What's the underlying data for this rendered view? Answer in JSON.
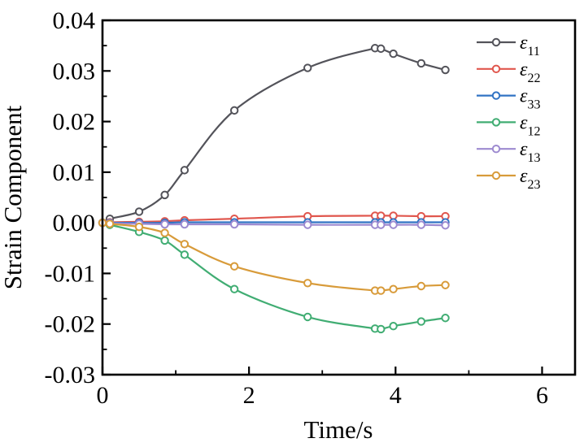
{
  "figure": {
    "background": "#ffffff",
    "axis_color": "#000000",
    "border_width": 2.6
  },
  "chart_data": {
    "type": "line",
    "title": "",
    "xlabel": "Time/s",
    "ylabel": "Strain Component",
    "xlim": [
      0,
      6.45
    ],
    "ylim": [
      -0.03,
      0.04
    ],
    "grid": false,
    "legend_position": "top-right-inside",
    "marker": "open-circle",
    "x_major_ticks": [
      0,
      2,
      4,
      6
    ],
    "x_tick_labels": [
      "0",
      "2",
      "4",
      "6"
    ],
    "x_minor_ticks": [
      1,
      3,
      5
    ],
    "y_major_ticks": [
      0.04,
      0.03,
      0.02,
      0.01,
      0.0,
      -0.01,
      -0.02,
      -0.03
    ],
    "y_tick_labels": [
      "0.04",
      "0.03",
      "0.02",
      "0.01",
      "0.00",
      "-0.01",
      "-0.02",
      "-0.03"
    ],
    "y_minor_ticks": [
      0.035,
      0.025,
      0.015,
      0.005,
      -0.005,
      -0.015,
      -0.025
    ],
    "x": [
      0,
      0.1,
      0.5,
      0.85,
      1.12,
      1.8,
      2.8,
      3.72,
      3.8,
      3.97,
      4.35,
      4.68
    ],
    "series": [
      {
        "id": "e11",
        "legend_base": "ε",
        "legend_sub": "11",
        "color": "#53535a",
        "values": [
          0,
          0.0008,
          0.0022,
          0.0055,
          0.0104,
          0.0222,
          0.0306,
          0.0345,
          0.0344,
          0.0334,
          0.0315,
          0.0302
        ]
      },
      {
        "id": "e22",
        "legend_base": "ε",
        "legend_sub": "22",
        "color": "#e0564d",
        "values": [
          0,
          0.0001,
          0.0002,
          0.0003,
          0.0005,
          0.0008,
          0.0013,
          0.0014,
          0.0014,
          0.0014,
          0.0013,
          0.0013
        ]
      },
      {
        "id": "e33",
        "legend_base": "ε",
        "legend_sub": "33",
        "color": "#3173c4",
        "values": [
          0,
          0.0,
          0.0,
          0.0,
          0.0001,
          0.0001,
          0.0001,
          0.0001,
          0.0001,
          0.0001,
          0.0001,
          0.0001
        ]
      },
      {
        "id": "e12",
        "legend_base": "ε",
        "legend_sub": "12",
        "color": "#41ad73",
        "values": [
          0,
          -0.0004,
          -0.0018,
          -0.0035,
          -0.0063,
          -0.0131,
          -0.0186,
          -0.0209,
          -0.021,
          -0.0204,
          -0.0195,
          -0.0188
        ]
      },
      {
        "id": "e13",
        "legend_base": "ε",
        "legend_sub": "13",
        "color": "#9d8ad0",
        "values": [
          0,
          -0.0001,
          -0.0002,
          -0.0003,
          -0.0003,
          -0.0003,
          -0.0004,
          -0.0004,
          -0.0004,
          -0.0004,
          -0.0004,
          -0.0005
        ]
      },
      {
        "id": "e23",
        "legend_base": "ε",
        "legend_sub": "23",
        "color": "#d89b3a",
        "values": [
          0,
          -0.0002,
          -0.0008,
          -0.002,
          -0.0042,
          -0.0086,
          -0.0119,
          -0.0134,
          -0.0134,
          -0.0131,
          -0.0125,
          -0.0123
        ]
      }
    ]
  }
}
